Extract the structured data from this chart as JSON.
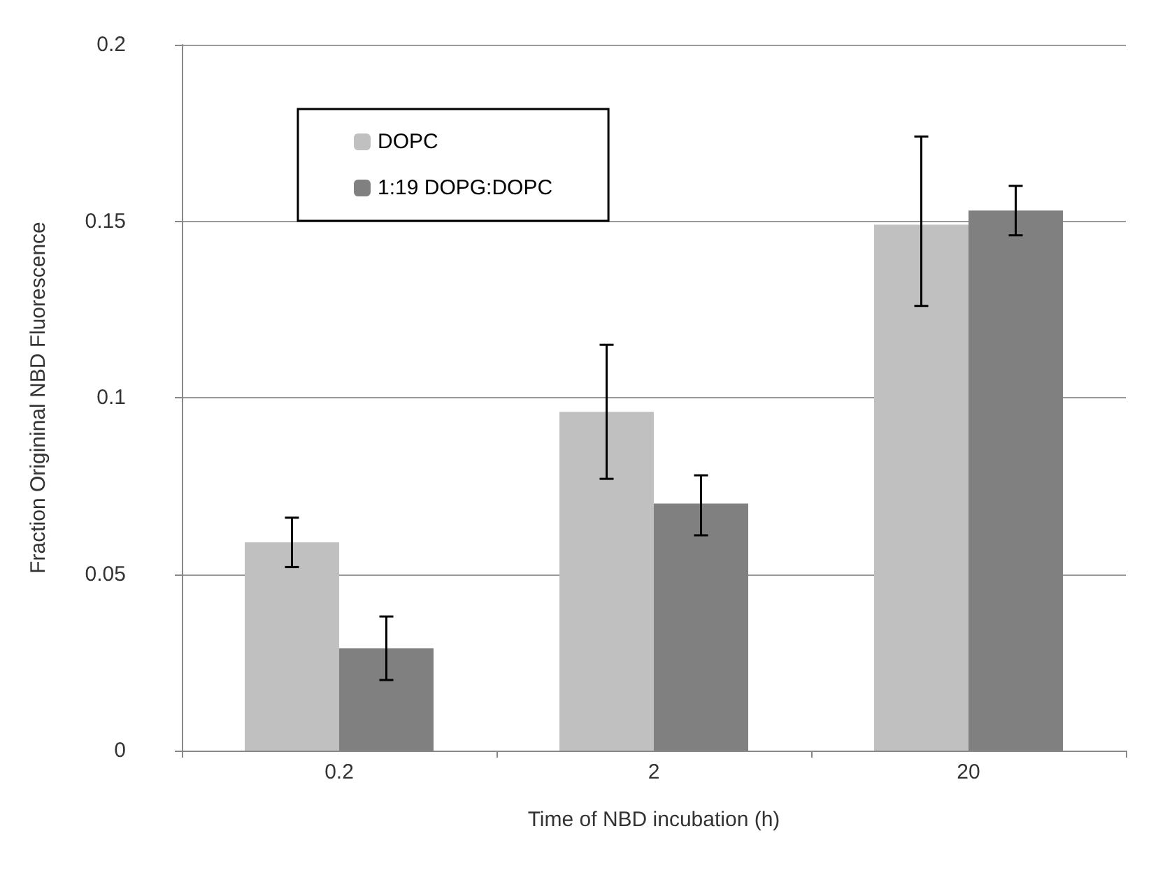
{
  "chart_data": {
    "type": "bar",
    "xlabel": "Time of NBD incubation (h)",
    "ylabel": "Fraction Origininal NBD Fluorescence",
    "categories": [
      "0.2",
      "2",
      "20"
    ],
    "series": [
      {
        "name": "DOPC",
        "color": "#c0c0c0",
        "values": [
          0.059,
          0.096,
          0.149
        ],
        "errors": [
          [
            0.052,
            0.066
          ],
          [
            0.077,
            0.115
          ],
          [
            0.126,
            0.174
          ]
        ]
      },
      {
        "name": "1:19 DOPG:DOPC",
        "color": "#808080",
        "values": [
          0.029,
          0.07,
          0.153
        ],
        "errors": [
          [
            0.02,
            0.038
          ],
          [
            0.061,
            0.078
          ],
          [
            0.146,
            0.16
          ]
        ]
      }
    ],
    "ylim": [
      0,
      0.2
    ],
    "yticks": [
      0,
      0.05,
      0.1,
      0.15,
      0.2
    ],
    "grid": "y",
    "legend": "top left"
  }
}
